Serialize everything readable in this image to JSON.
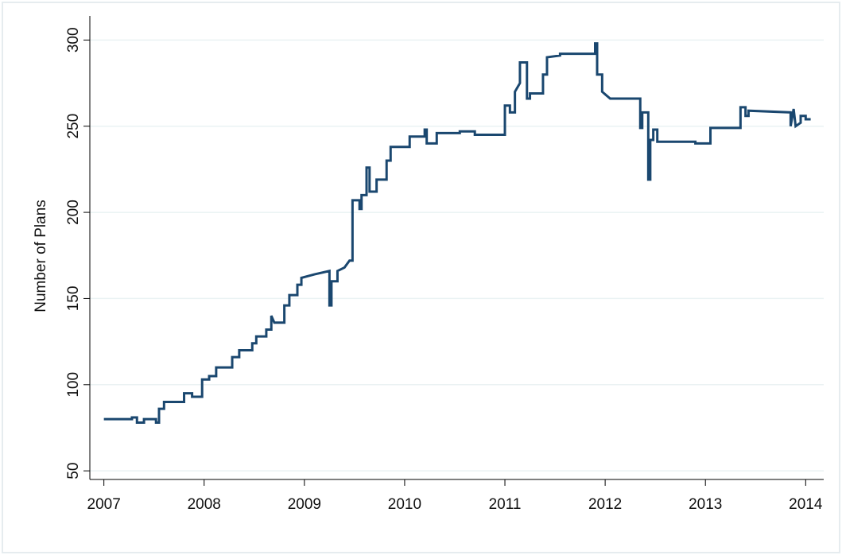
{
  "chart_data": {
    "type": "line",
    "y_label": "Number of Plans",
    "color": "#1a476f",
    "xlim": [
      2006.86,
      2014.18
    ],
    "xticks": [
      2007,
      2008,
      2009,
      2010,
      2011,
      2012,
      2013,
      2014
    ],
    "ylim": [
      45,
      314
    ],
    "yticks": [
      50,
      100,
      150,
      200,
      250,
      300
    ],
    "grid": true,
    "x": [
      2007.0,
      2007.28,
      2007.28,
      2007.33,
      2007.33,
      2007.4,
      2007.4,
      2007.52,
      2007.52,
      2007.55,
      2007.55,
      2007.6,
      2007.6,
      2007.8,
      2007.8,
      2007.88,
      2007.88,
      2007.98,
      2007.98,
      2008.05,
      2008.05,
      2008.12,
      2008.12,
      2008.28,
      2008.28,
      2008.35,
      2008.35,
      2008.48,
      2008.48,
      2008.52,
      2008.52,
      2008.62,
      2008.62,
      2008.67,
      2008.67,
      2008.7,
      2008.8,
      2008.8,
      2008.85,
      2008.85,
      2008.93,
      2008.93,
      2008.97,
      2008.97,
      2009.1,
      2009.25,
      2009.25,
      2009.27,
      2009.27,
      2009.33,
      2009.33,
      2009.4,
      2009.45,
      2009.48,
      2009.48,
      2009.55,
      2009.55,
      2009.57,
      2009.57,
      2009.62,
      2009.62,
      2009.65,
      2009.65,
      2009.72,
      2009.72,
      2009.82,
      2009.82,
      2009.86,
      2009.86,
      2010.05,
      2010.05,
      2010.2,
      2010.2,
      2010.22,
      2010.22,
      2010.32,
      2010.32,
      2010.55,
      2010.55,
      2010.7,
      2010.7,
      2011.0,
      2011.0,
      2011.05,
      2011.05,
      2011.1,
      2011.1,
      2011.15,
      2011.15,
      2011.22,
      2011.22,
      2011.25,
      2011.25,
      2011.38,
      2011.38,
      2011.42,
      2011.42,
      2011.55,
      2011.55,
      2011.9,
      2011.9,
      2011.92,
      2011.92,
      2011.97,
      2011.97,
      2012.05,
      2012.35,
      2012.35,
      2012.37,
      2012.37,
      2012.43,
      2012.43,
      2012.45,
      2012.45,
      2012.48,
      2012.48,
      2012.52,
      2012.52,
      2012.9,
      2012.9,
      2013.05,
      2013.05,
      2013.35,
      2013.35,
      2013.4,
      2013.4,
      2013.43,
      2013.43,
      2013.85,
      2013.85,
      2013.88,
      2013.9,
      2013.95,
      2013.95,
      2014.0,
      2014.0,
      2014.05
    ],
    "values": [
      80,
      80,
      81,
      81,
      78,
      78,
      80,
      80,
      78,
      78,
      86,
      86,
      90,
      90,
      95,
      95,
      93,
      93,
      103,
      103,
      105,
      105,
      110,
      110,
      116,
      116,
      120,
      120,
      124,
      124,
      128,
      128,
      132,
      132,
      140,
      136,
      136,
      146,
      146,
      152,
      152,
      158,
      158,
      162,
      164,
      166,
      146,
      146,
      160,
      160,
      166,
      168,
      172,
      172,
      207,
      207,
      202,
      202,
      210,
      210,
      226,
      226,
      212,
      212,
      219,
      219,
      230,
      230,
      238,
      238,
      244,
      244,
      248,
      248,
      240,
      240,
      246,
      246,
      247,
      247,
      245,
      245,
      262,
      262,
      258,
      258,
      270,
      275,
      287,
      287,
      266,
      266,
      269,
      269,
      280,
      280,
      290,
      291,
      292,
      292,
      298,
      298,
      280,
      280,
      270,
      266,
      266,
      249,
      249,
      258,
      258,
      219,
      219,
      242,
      242,
      248,
      248,
      241,
      241,
      240,
      240,
      249,
      249,
      261,
      261,
      256,
      256,
      259,
      258,
      250,
      260,
      250,
      252,
      256,
      256,
      254,
      254
    ]
  }
}
